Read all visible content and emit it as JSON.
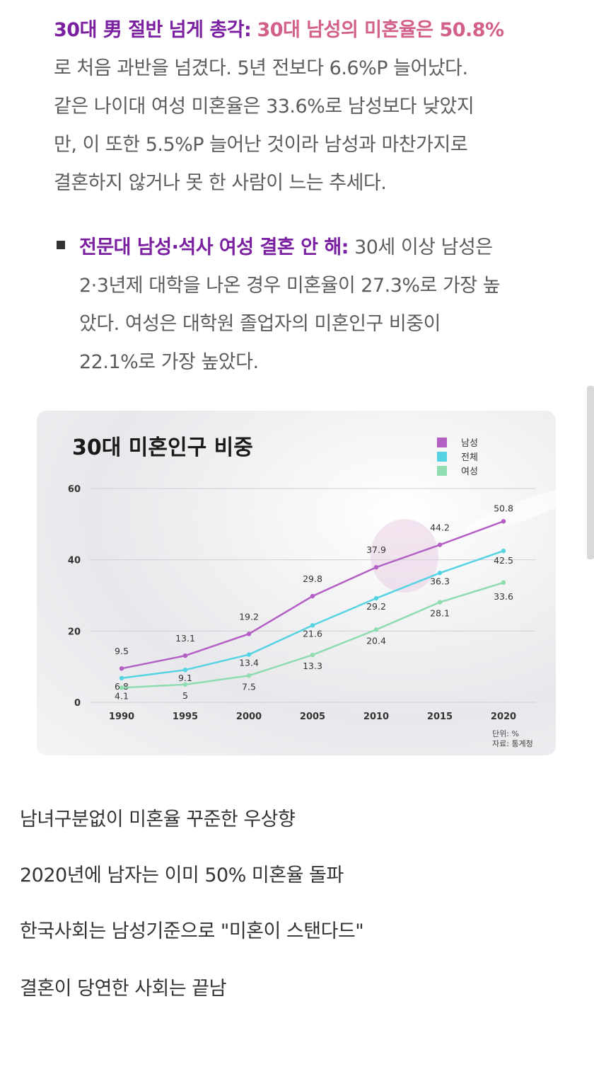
{
  "para1": {
    "label": "30대 男 절반 넘게 총각:",
    "highlight": "30대 남성의 미혼율은 50.8%",
    "lines": [
      "로 처음 과반을 넘겼다. 5년 전보다 6.6%P 늘어났다.",
      "같은 나이대 여성 미혼율은 33.6%로 남성보다 낮았지",
      "만, 이 또한 5.5%P 늘어난 것이라 남성과 마찬가지로",
      "결혼하지 않거나 못 한 사람이 느는 추세다."
    ]
  },
  "para2": {
    "label": "전문대 남성·석사 여성 결혼 안 해:",
    "first_tail": " 30세 이상 남성은",
    "lines": [
      "2·3년제 대학을 나온 경우 미혼율이 27.3%로 가장 높",
      "았다. 여성은 대학원 졸업자의 미혼인구 비중이",
      "22.1%로 가장 높았다."
    ]
  },
  "chart_data": {
    "type": "line",
    "title": "30대 미혼인구 비중",
    "categories": [
      "1990",
      "1995",
      "2000",
      "2005",
      "2010",
      "2015",
      "2020"
    ],
    "series": [
      {
        "name": "남성",
        "color": "#b35fc4",
        "values": [
          9.5,
          13.1,
          19.2,
          29.8,
          37.9,
          44.2,
          50.8
        ]
      },
      {
        "name": "전체",
        "color": "#56d3e3",
        "values": [
          6.8,
          9.1,
          13.4,
          21.6,
          29.2,
          36.3,
          42.5
        ]
      },
      {
        "name": "여성",
        "color": "#8fdcb0",
        "values": [
          4.1,
          5,
          7.5,
          13.3,
          20.4,
          28.1,
          33.6
        ]
      }
    ],
    "yticks": [
      0,
      20,
      40,
      60
    ],
    "ylim": [
      0,
      60
    ],
    "legend_position": "top-right",
    "unit_note": "단위: %",
    "source_note": "자료: 통계청"
  },
  "bottom": {
    "line1": "남녀구분없이 미혼율 꾸준한 우상향",
    "line2": "2020년에 남자는 이미 50% 미혼율 돌파",
    "line3": "한국사회는 남성기준으로 \"미혼이 스탠다드\"",
    "line4": "결혼이 당연한 사회는 끝남"
  }
}
